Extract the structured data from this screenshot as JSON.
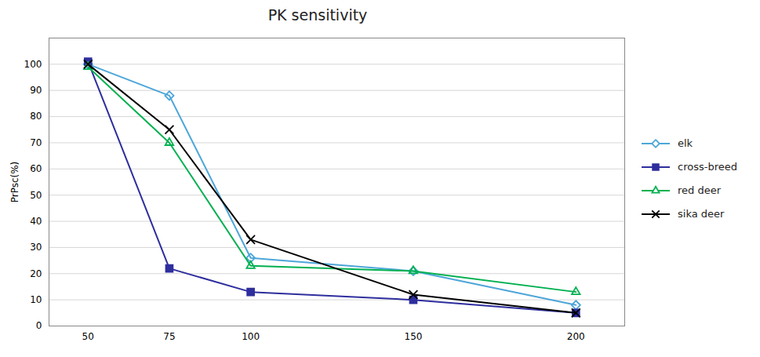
{
  "chart_data": {
    "type": "line",
    "title": "PK sensitivity",
    "ylabel": "PrPsc(%)",
    "x": [
      50,
      75,
      100,
      150,
      200
    ],
    "series": [
      {
        "name": "elk",
        "color": "#4da6d9",
        "marker": "diamond-open",
        "values": [
          100,
          88,
          26,
          21,
          8
        ]
      },
      {
        "name": "cross-breed",
        "color": "#2e2e9e",
        "marker": "square",
        "values": [
          101,
          22,
          13,
          10,
          5
        ]
      },
      {
        "name": "red deer",
        "color": "#00b050",
        "marker": "triangle-open",
        "values": [
          99,
          70,
          23,
          21,
          13
        ]
      },
      {
        "name": "sika deer",
        "color": "#000000",
        "marker": "x",
        "values": [
          100,
          75,
          33,
          12,
          5
        ]
      }
    ],
    "xlim": [
      38,
      215
    ],
    "xticks": [
      50,
      75,
      100,
      150,
      200
    ],
    "ylim": [
      0,
      110
    ],
    "yticks": [
      0,
      10,
      20,
      30,
      40,
      50,
      60,
      70,
      80,
      90,
      100
    ],
    "grid": "y",
    "legend": "right"
  }
}
